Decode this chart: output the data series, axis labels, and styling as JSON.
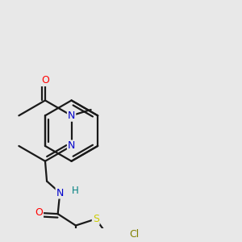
{
  "background_color": "#e8e8e8",
  "bond_color": "#1a1a1a",
  "atom_colors": {
    "O": "#ff0000",
    "N": "#0000cc",
    "S": "#cccc00",
    "Cl": "#808000",
    "H_color": "#008080",
    "C": "#1a1a1a"
  },
  "figsize": [
    3.0,
    3.0
  ],
  "dpi": 100
}
